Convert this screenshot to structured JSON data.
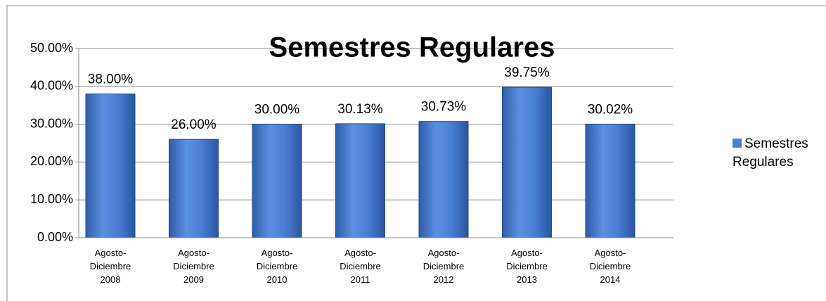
{
  "chart_data": {
    "type": "bar",
    "title": "Semestres Regulares",
    "categories": [
      "Agosto-Diciembre 2008",
      "Agosto-Diciembre 2009",
      "Agosto-Diciembre 2010",
      "Agosto-Diciembre 2011",
      "Agosto-Diciembre 2012",
      "Agosto-Diciembre 2013",
      "Agosto-Diciembre 2014"
    ],
    "series": [
      {
        "name": "Semestres Regulares",
        "color": "#4a7fd4",
        "values": [
          38.0,
          26.0,
          30.0,
          30.13,
          30.73,
          39.75,
          30.02
        ],
        "value_labels": [
          "38.00%",
          "26.00%",
          "30.00%",
          "30.13%",
          "30.73%",
          "39.75%",
          "30.02%"
        ]
      }
    ],
    "ylim": [
      0,
      50
    ],
    "yticks": [
      {
        "value": 0,
        "label": "0.00%"
      },
      {
        "value": 10,
        "label": "10.00%"
      },
      {
        "value": 20,
        "label": "20.00%"
      },
      {
        "value": 30,
        "label": "30.00%"
      },
      {
        "value": 40,
        "label": "40.00%"
      },
      {
        "value": 50,
        "label": "50.00%"
      }
    ],
    "grid": true,
    "legend": "right"
  }
}
